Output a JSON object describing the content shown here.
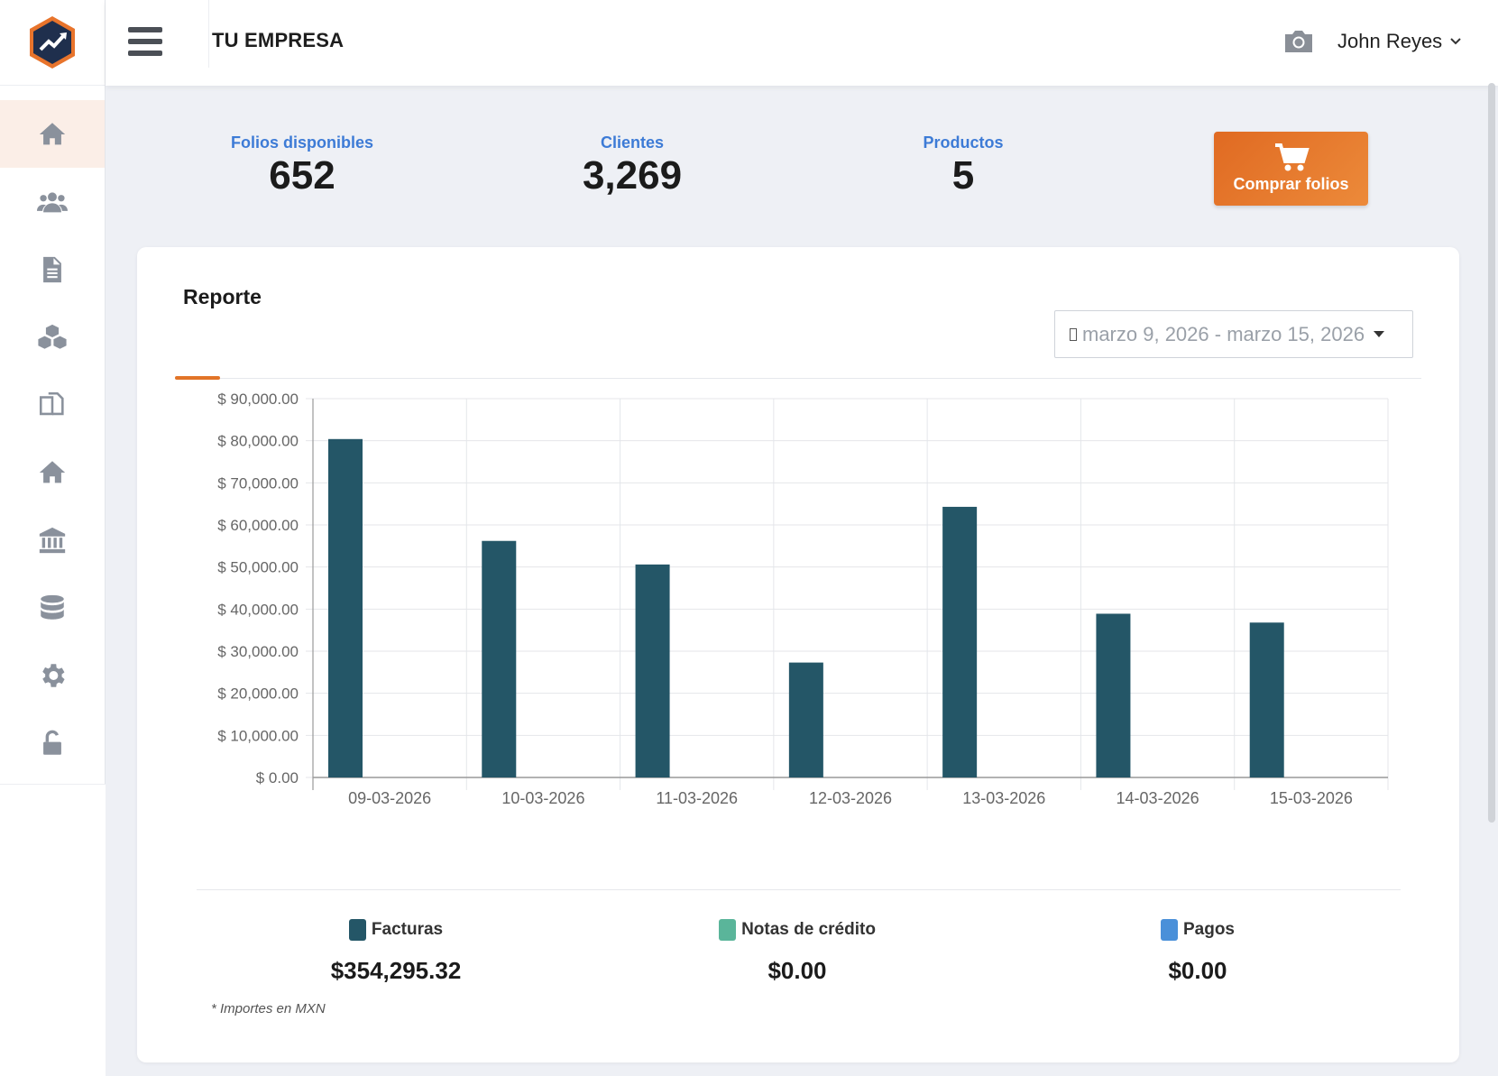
{
  "header": {
    "company": "TU EMPRESA",
    "user_name": "John Reyes",
    "icons": [
      "menu-icon",
      "camera-icon",
      "chevron-down-icon"
    ]
  },
  "sidebar": {
    "items": [
      {
        "name": "home",
        "icon": "home-icon",
        "active": true
      },
      {
        "name": "clients",
        "icon": "users-icon"
      },
      {
        "name": "documents",
        "icon": "document-icon"
      },
      {
        "name": "products",
        "icon": "boxes-icon"
      },
      {
        "name": "copies",
        "icon": "copy-icon"
      },
      {
        "name": "home-2",
        "icon": "home-icon"
      },
      {
        "name": "bank",
        "icon": "bank-icon"
      },
      {
        "name": "database",
        "icon": "database-icon"
      },
      {
        "name": "settings",
        "icon": "gear-icon"
      },
      {
        "name": "logout",
        "icon": "unlock-icon"
      }
    ]
  },
  "stats": {
    "folios_label": "Folios disponibles",
    "folios_value": "652",
    "clientes_label": "Clientes",
    "clientes_value": "3,269",
    "productos_label": "Productos",
    "productos_value": "5",
    "buy_label": "Comprar folios"
  },
  "report": {
    "title": "Reporte",
    "date_range": "marzo 9, 2026 - marzo 15, 2026",
    "footnote": "* Importes en MXN"
  },
  "chart_data": {
    "type": "bar",
    "categories": [
      "09-03-2026",
      "10-03-2026",
      "11-03-2026",
      "12-03-2026",
      "13-03-2026",
      "14-03-2026",
      "15-03-2026"
    ],
    "series": [
      {
        "name": "Facturas",
        "values": [
          80400,
          56200,
          50600,
          27300,
          64300,
          38900,
          36800
        ]
      },
      {
        "name": "Notas de crédito",
        "values": [
          0,
          0,
          0,
          0,
          0,
          0,
          0
        ]
      },
      {
        "name": "Pagos",
        "values": [
          0,
          0,
          0,
          0,
          0,
          0,
          0
        ]
      }
    ],
    "ylim": [
      0,
      90000
    ],
    "yticks": [
      "$ 0.00",
      "$ 10,000.00",
      "$ 20,000.00",
      "$ 30,000.00",
      "$ 40,000.00",
      "$ 50,000.00",
      "$ 60,000.00",
      "$ 70,000.00",
      "$ 80,000.00",
      "$ 90,000.00"
    ],
    "grid": true,
    "legend_position": "bottom",
    "colors": {
      "facturas": "#245667",
      "notas": "#5ab59a",
      "pagos": "#4a90d9"
    }
  },
  "totals": {
    "facturas_label": "Facturas",
    "facturas_value": "$354,295.32",
    "notas_label": "Notas de crédito",
    "notas_value": "$0.00",
    "pagos_label": "Pagos",
    "pagos_value": "$0.00"
  }
}
